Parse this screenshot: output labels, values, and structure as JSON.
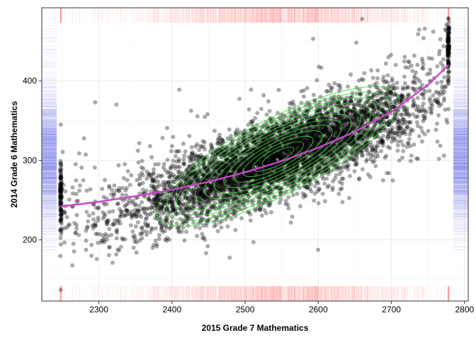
{
  "chart_data": {
    "type": "scatter",
    "title": "",
    "xlabel": "2015 Grade 7 Mathematics",
    "ylabel": "2014 Grade 6 Mathematics",
    "xlim": [
      2222,
      2805
    ],
    "ylim": [
      123,
      492
    ],
    "xticks": [
      2300,
      2400,
      2500,
      2600,
      2700,
      2800
    ],
    "yticks": [
      200,
      300,
      400
    ],
    "grid": true,
    "legend": "none",
    "colors": {
      "points": "#000000",
      "trend": "#cc44cc",
      "density_contours": "#33dd33",
      "x_rug": "#ff5555",
      "y_rug": "#5555ee",
      "grid": "#ebebeb",
      "panel_border": "#333333"
    },
    "point_cloud": {
      "n_points_approx": 9000,
      "x_range": [
        2248,
        2778
      ],
      "y_range": [
        137,
        480
      ],
      "center": [
        2545,
        305
      ],
      "relationship": "strong positive correlation",
      "boundary_clusters": [
        {
          "x": 2248,
          "y_center": 255
        },
        {
          "x": 2778,
          "y_center": 440
        }
      ],
      "sample_points": [
        {
          "x": 2248,
          "y": 137
        },
        {
          "x": 2248,
          "y": 345
        },
        {
          "x": 2295,
          "y": 373
        },
        {
          "x": 2290,
          "y": 180
        },
        {
          "x": 2410,
          "y": 389
        },
        {
          "x": 2593,
          "y": 453
        },
        {
          "x": 2660,
          "y": 478
        },
        {
          "x": 2778,
          "y": 478
        },
        {
          "x": 2765,
          "y": 302
        },
        {
          "x": 2445,
          "y": 200
        }
      ]
    },
    "trend_line": {
      "x": [
        2248,
        2300,
        2350,
        2400,
        2450,
        2500,
        2550,
        2600,
        2650,
        2700,
        2750,
        2778
      ],
      "y": [
        242,
        248,
        255,
        263,
        273,
        285,
        299,
        316,
        336,
        361,
        395,
        420
      ]
    },
    "density_contours": {
      "center": [
        2545,
        305
      ],
      "levels": 12
    }
  }
}
